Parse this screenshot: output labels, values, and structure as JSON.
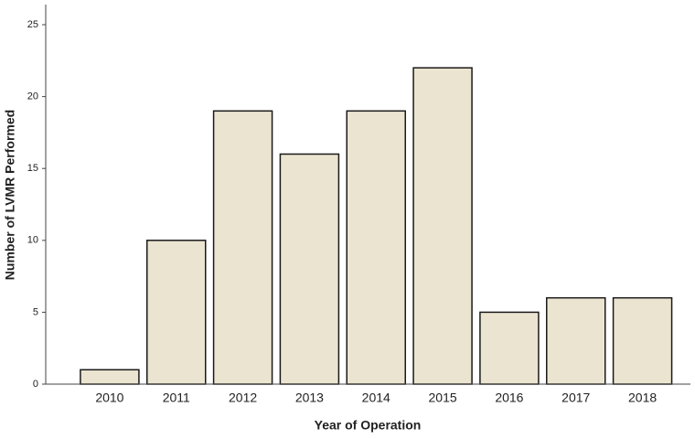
{
  "chart_data": {
    "type": "bar",
    "x_label": "Year of Operation",
    "y_label": "Number of LVMR Performed",
    "categories": [
      "2010",
      "2011",
      "2012",
      "2013",
      "2014",
      "2015",
      "2016",
      "2017",
      "2018"
    ],
    "values": [
      1,
      10,
      19,
      16,
      19,
      22,
      5,
      6,
      6
    ],
    "color": "#ebe4d0",
    "ylim": [
      0,
      25
    ],
    "yticks": [
      0,
      5,
      10,
      15,
      20,
      25
    ],
    "grid": false
  }
}
